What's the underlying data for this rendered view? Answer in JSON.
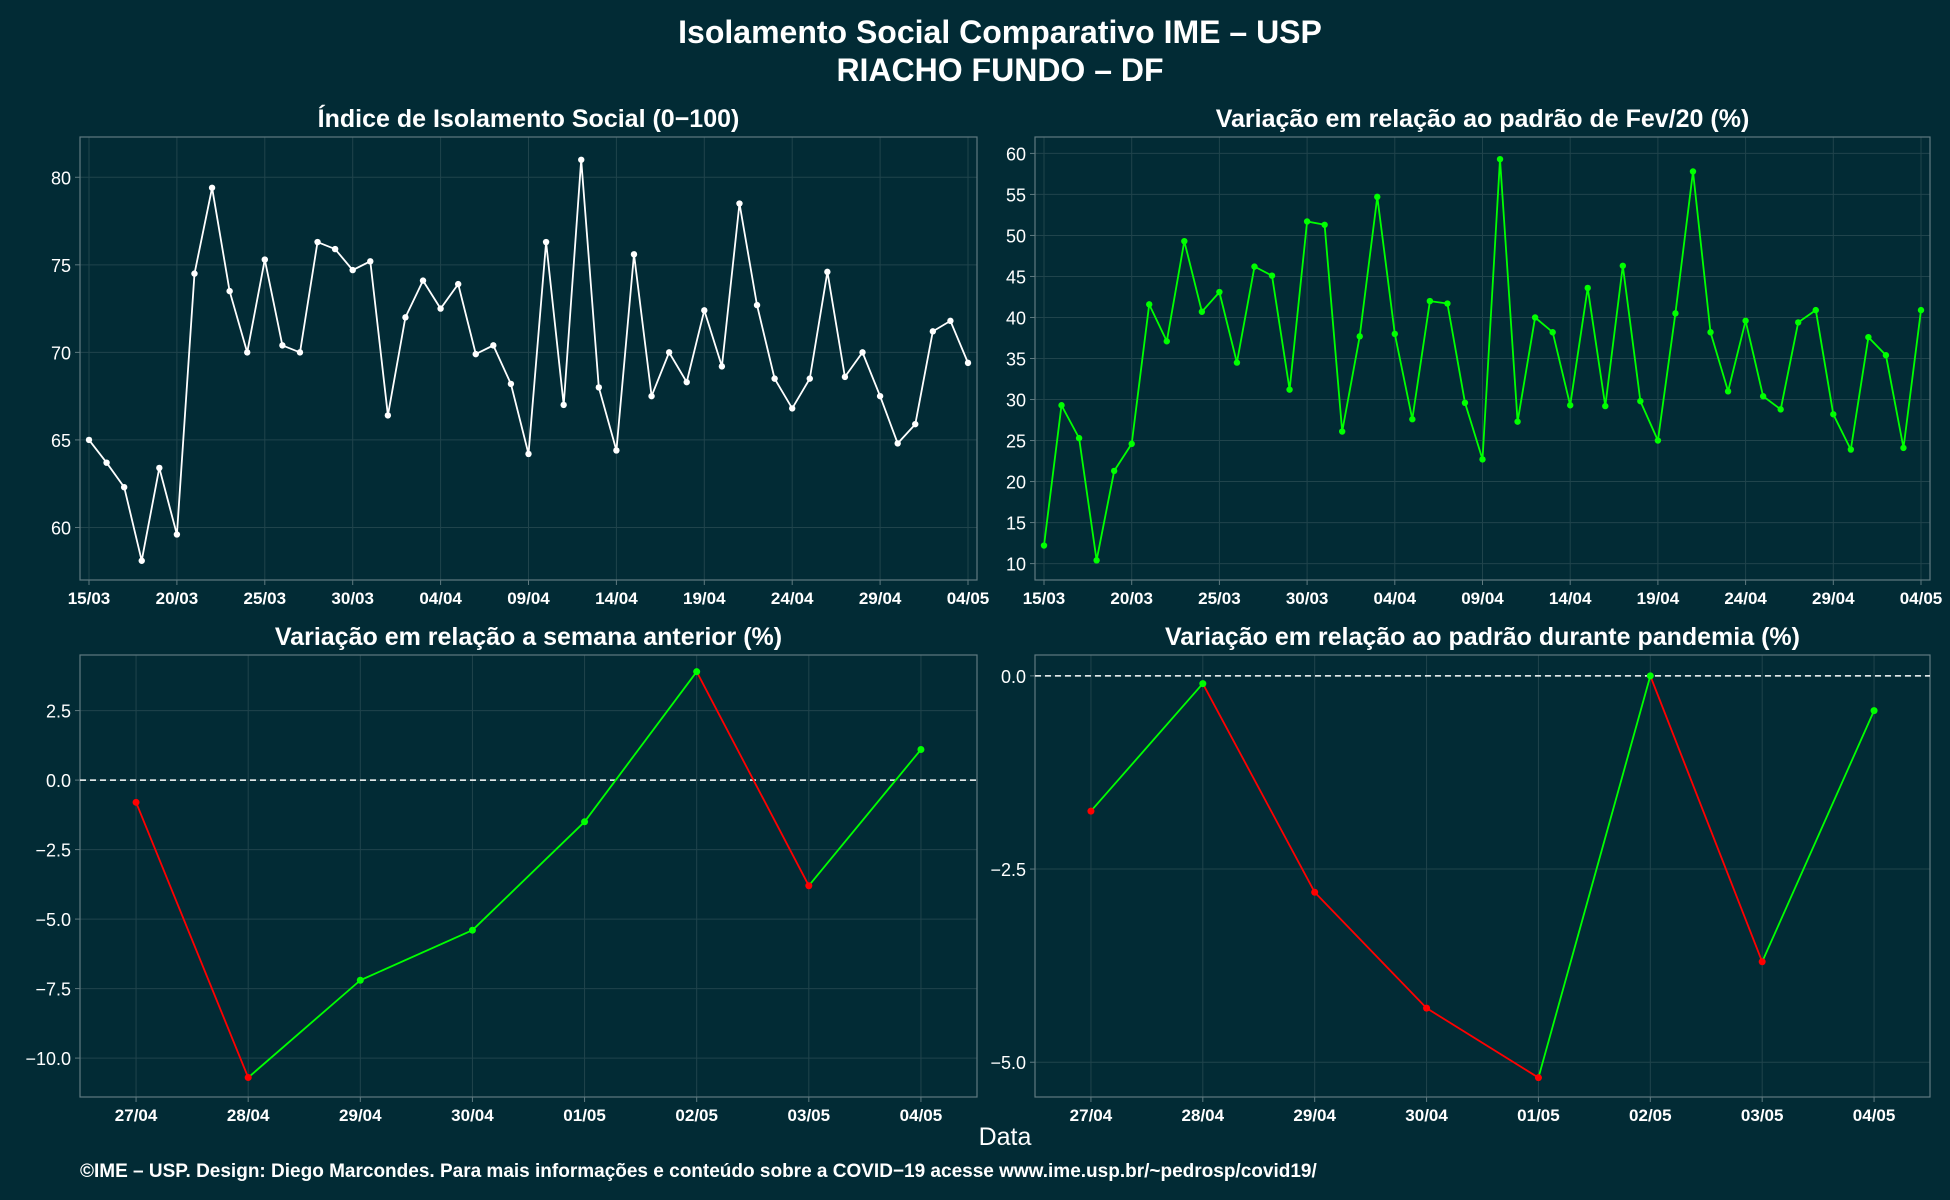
{
  "figure": {
    "title_line1": "Isolamento Social Comparativo IME – USP",
    "title_line2": "RIACHO FUNDO – DF",
    "xlabel": "Data",
    "footer": "©IME – USP. Design: Diego Marcondes. Para mais informações e conteúdo sobre a COVID−19 acesse www.ime.usp.br/~pedrosp/covid19/"
  },
  "colors": {
    "background": "#022b35",
    "panel_border": "#5f7a80",
    "grid": "#20444c",
    "text": "#ffffff",
    "white_series": "#ffffff",
    "green": "#00ff00",
    "red": "#ff0000"
  },
  "chart_data": [
    {
      "type": "line",
      "title": "Índice de Isolamento Social (0−100)",
      "x_dates": [
        "15/03",
        "16/03",
        "17/03",
        "18/03",
        "19/03",
        "20/03",
        "21/03",
        "22/03",
        "23/03",
        "24/03",
        "25/03",
        "26/03",
        "27/03",
        "28/03",
        "29/03",
        "30/03",
        "31/03",
        "01/04",
        "02/04",
        "03/04",
        "04/04",
        "05/04",
        "06/04",
        "07/04",
        "08/04",
        "09/04",
        "10/04",
        "11/04",
        "12/04",
        "13/04",
        "14/04",
        "15/04",
        "16/04",
        "17/04",
        "18/04",
        "19/04",
        "20/04",
        "21/04",
        "22/04",
        "23/04",
        "24/04",
        "25/04",
        "26/04",
        "27/04",
        "28/04",
        "29/04",
        "30/04",
        "01/05",
        "02/05",
        "03/05",
        "04/05"
      ],
      "series": [
        {
          "values": [
            65.0,
            63.7,
            62.3,
            58.1,
            63.4,
            59.6,
            74.5,
            79.4,
            73.5,
            70.0,
            75.3,
            70.4,
            70.0,
            76.3,
            75.9,
            74.7,
            75.2,
            66.4,
            72.0,
            74.1,
            72.5,
            73.9,
            69.9,
            70.4,
            68.2,
            64.2,
            76.3,
            67.0,
            81.0,
            68.0,
            64.4,
            75.6,
            67.5,
            70.0,
            68.3,
            72.4,
            69.2,
            78.5,
            72.7,
            68.5,
            66.8,
            68.5,
            74.6,
            68.6,
            70.0,
            67.5,
            64.8,
            65.9,
            71.2,
            71.8,
            69.4
          ],
          "color": "#ffffff"
        }
      ],
      "x_ticks": [
        "15/03",
        "20/03",
        "25/03",
        "30/03",
        "04/04",
        "09/04",
        "14/04",
        "19/04",
        "24/04",
        "29/04",
        "04/05"
      ],
      "y_ticks": [
        60,
        65,
        70,
        75,
        80
      ],
      "ylim": [
        57.0,
        82.3
      ]
    },
    {
      "type": "line",
      "title": "Variação em relação ao padrão de Fev/20 (%)",
      "x_dates": [
        "15/03",
        "16/03",
        "17/03",
        "18/03",
        "19/03",
        "20/03",
        "21/03",
        "22/03",
        "23/03",
        "24/03",
        "25/03",
        "26/03",
        "27/03",
        "28/03",
        "29/03",
        "30/03",
        "31/03",
        "01/04",
        "02/04",
        "03/04",
        "04/04",
        "05/04",
        "06/04",
        "07/04",
        "08/04",
        "09/04",
        "10/04",
        "11/04",
        "12/04",
        "13/04",
        "14/04",
        "15/04",
        "16/04",
        "17/04",
        "18/04",
        "19/04",
        "20/04",
        "21/04",
        "22/04",
        "23/04",
        "24/04",
        "25/04",
        "26/04",
        "27/04",
        "28/04",
        "29/04",
        "30/04",
        "01/05",
        "02/05",
        "03/05",
        "04/05"
      ],
      "series": [
        {
          "values": [
            12.2,
            29.3,
            25.3,
            10.4,
            21.3,
            24.6,
            41.6,
            37.1,
            49.3,
            40.7,
            43.1,
            34.5,
            46.2,
            45.1,
            31.2,
            51.7,
            51.3,
            26.1,
            37.7,
            54.7,
            38.0,
            27.6,
            42.0,
            41.7,
            29.6,
            22.7,
            59.3,
            27.3,
            40.0,
            38.2,
            29.3,
            43.6,
            29.2,
            46.3,
            29.8,
            25.0,
            40.5,
            57.8,
            38.2,
            31.0,
            39.6,
            30.4,
            28.8,
            39.4,
            40.9,
            28.2,
            23.9,
            37.6,
            35.4,
            24.1,
            40.9
          ],
          "color": "#00ff00"
        }
      ],
      "x_ticks": [
        "15/03",
        "20/03",
        "25/03",
        "30/03",
        "04/04",
        "09/04",
        "14/04",
        "19/04",
        "24/04",
        "29/04",
        "04/05"
      ],
      "y_ticks": [
        10,
        15,
        20,
        25,
        30,
        35,
        40,
        45,
        50,
        55,
        60
      ],
      "ylim": [
        8.0,
        62.0
      ]
    },
    {
      "type": "line",
      "title": "Variação em relação a semana anterior (%)",
      "categories": [
        "27/04",
        "28/04",
        "29/04",
        "30/04",
        "01/05",
        "02/05",
        "03/05",
        "04/05"
      ],
      "series": [
        {
          "values": [
            -0.8,
            -10.7,
            -7.2,
            -5.4,
            -1.5,
            3.9,
            -3.8,
            1.1
          ]
        }
      ],
      "reference_line": 0,
      "segment_colors": "green where the value rises, red where it falls",
      "y_ticks": [
        2.5,
        0.0,
        -2.5,
        -5.0,
        -7.5,
        -10.0
      ],
      "ylim": [
        -11.4,
        4.5
      ]
    },
    {
      "type": "line",
      "title": "Variação em relação ao padrão durante pandemia (%)",
      "categories": [
        "27/04",
        "28/04",
        "29/04",
        "30/04",
        "01/05",
        "02/05",
        "03/05",
        "04/05"
      ],
      "series": [
        {
          "values": [
            -1.75,
            -0.1,
            -2.8,
            -4.3,
            -5.2,
            0.0,
            -3.7,
            -0.45
          ]
        }
      ],
      "reference_line": 0,
      "segment_colors": "green where the value rises, red where it falls",
      "y_ticks": [
        0.0,
        -2.5,
        -5.0
      ],
      "ylim": [
        -5.45,
        0.27
      ]
    }
  ]
}
